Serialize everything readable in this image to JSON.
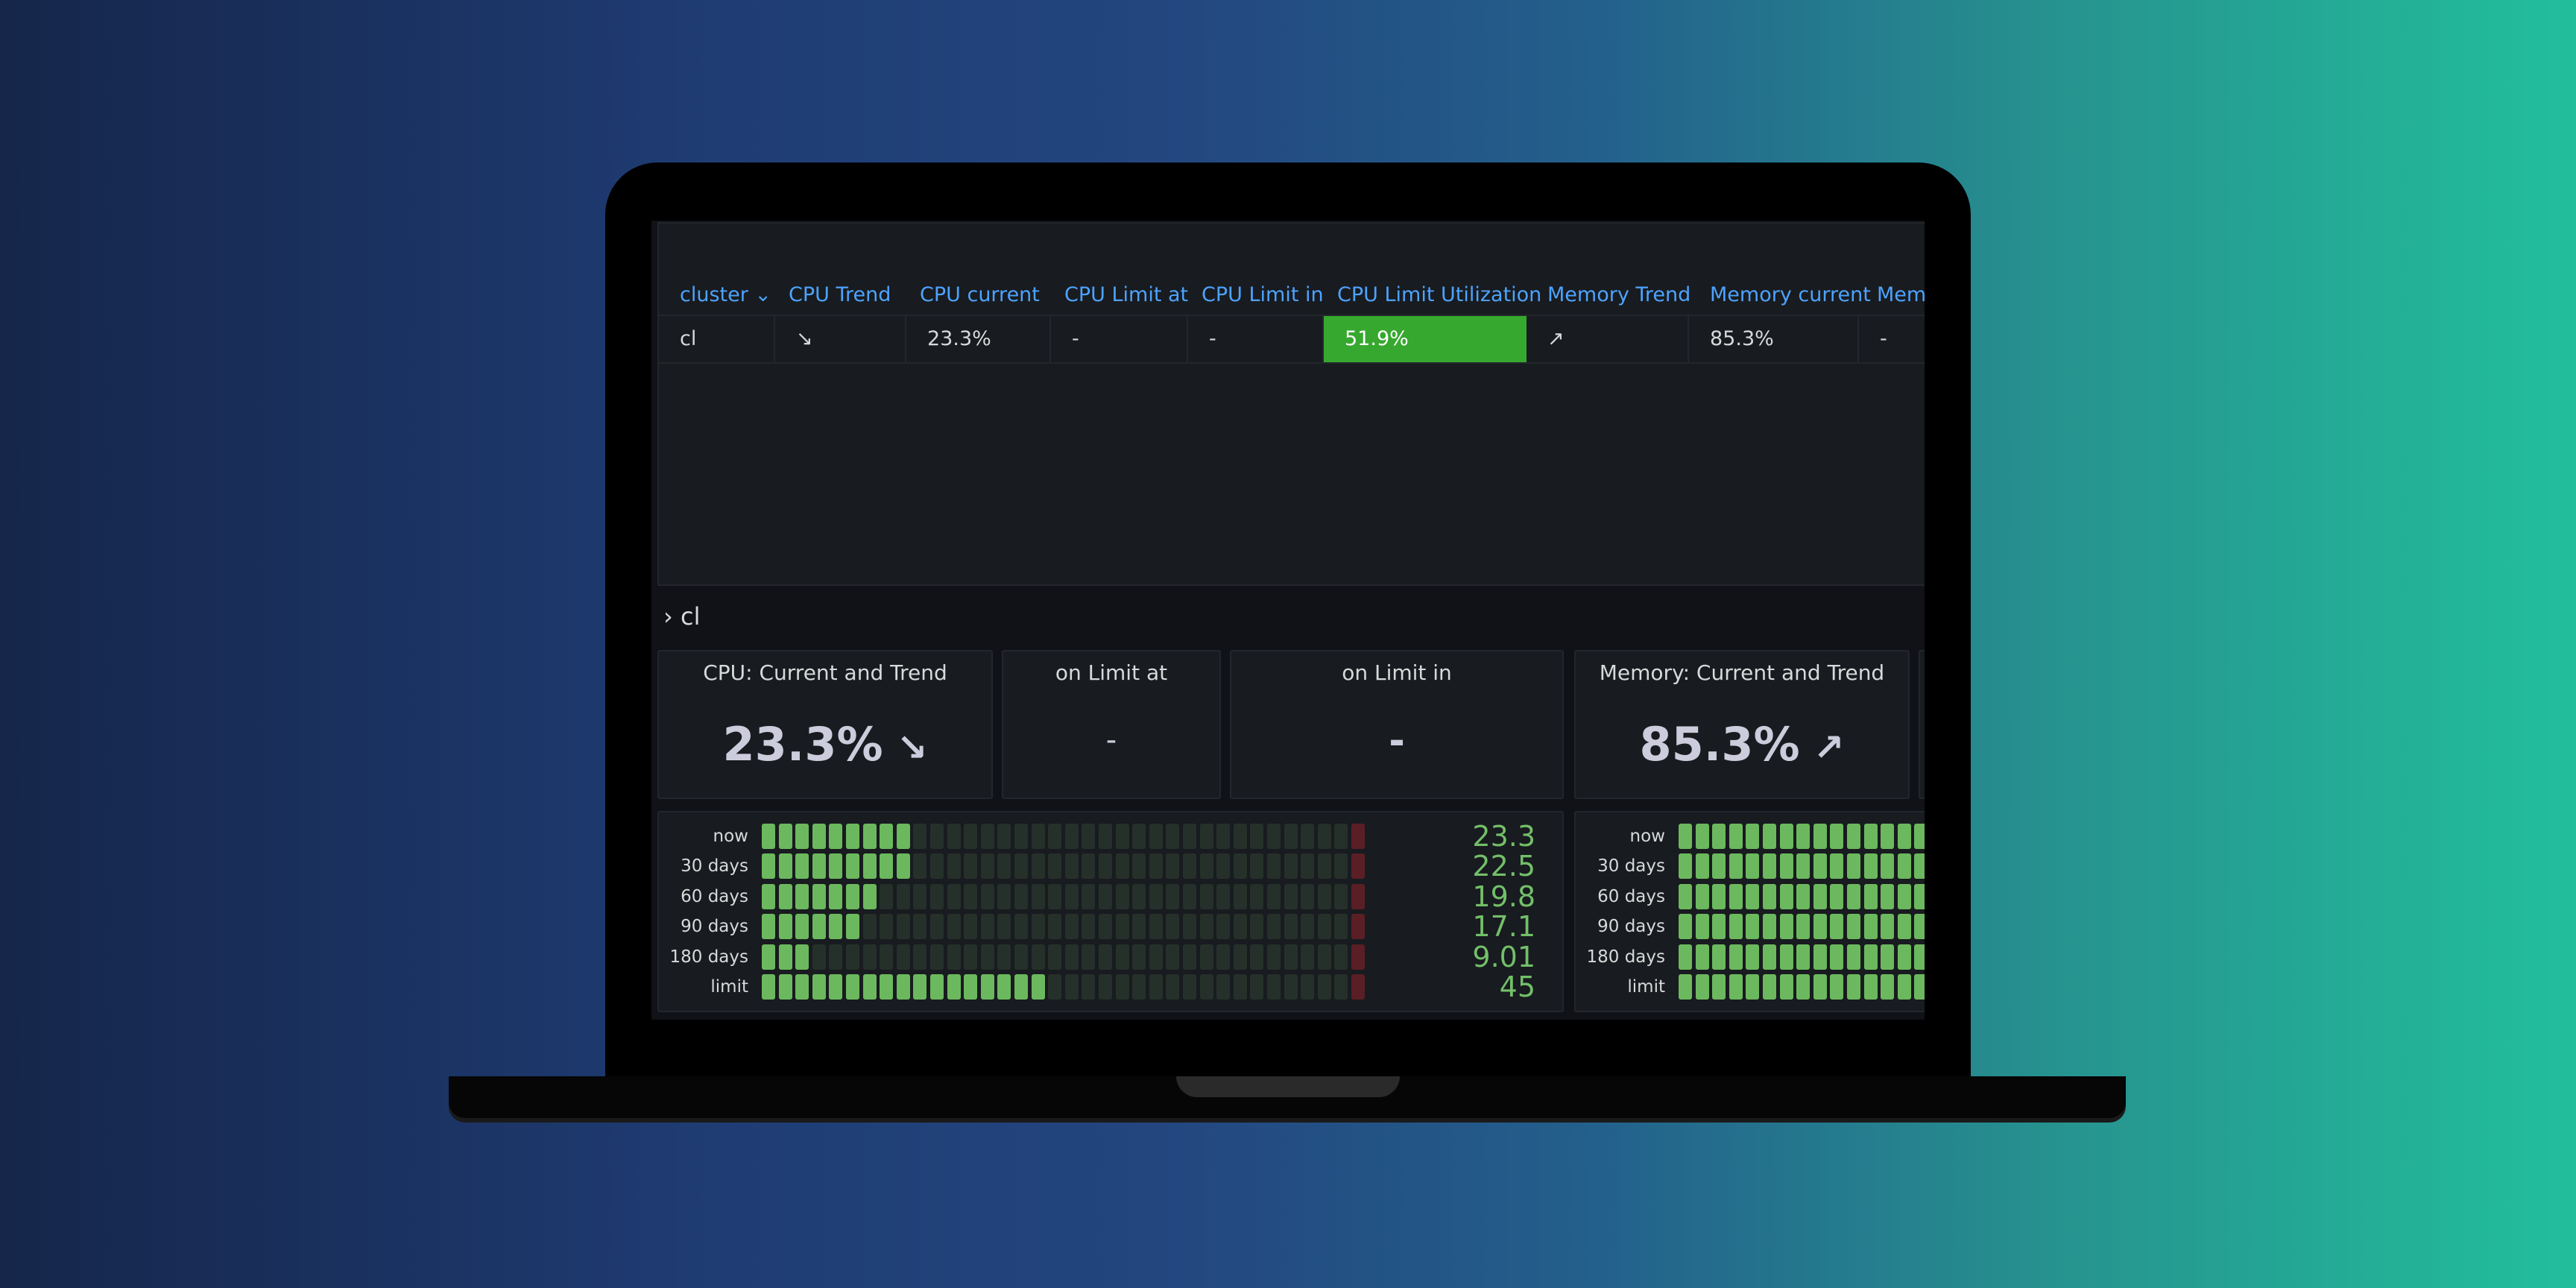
{
  "table": {
    "columns": [
      {
        "label": "cluster ⌄"
      },
      {
        "label": "CPU Trend"
      },
      {
        "label": "CPU current"
      },
      {
        "label": "CPU Limit at"
      },
      {
        "label": "CPU Limit in"
      },
      {
        "label": "CPU Limit Utilization"
      },
      {
        "label": "Memory Trend"
      },
      {
        "label": "Memory current"
      },
      {
        "label": "Mem"
      }
    ],
    "row": [
      "cl",
      "↘",
      "23.3%",
      "-",
      "-",
      "51.9%",
      "↗",
      "85.3%",
      "-"
    ]
  },
  "row_header": "› cl",
  "stats": [
    {
      "title": "CPU: Current and Trend",
      "value": "23.3%",
      "arrow": "↘"
    },
    {
      "title": "on Limit at",
      "value": "-",
      "arrow": ""
    },
    {
      "title": "on Limit in",
      "value": "-",
      "arrow": ""
    },
    {
      "title": "Memory: Current and Trend",
      "value": "85.3%",
      "arrow": "↗"
    }
  ],
  "cpu_gauge": {
    "max": 45,
    "rows": [
      {
        "label": "now",
        "value": 23.3,
        "display": "23.3"
      },
      {
        "label": "30 days",
        "value": 22.5,
        "display": "22.5"
      },
      {
        "label": "60 days",
        "value": 19.8,
        "display": "19.8"
      },
      {
        "label": "90 days",
        "value": 17.1,
        "display": "17.1"
      },
      {
        "label": "180 days",
        "value": 9.01,
        "display": "9.01"
      },
      {
        "label": "limit",
        "value": 45,
        "display": "45"
      }
    ]
  },
  "mem_gauge": {
    "rows": [
      {
        "label": "now"
      },
      {
        "label": "30 days"
      },
      {
        "label": "60 days"
      },
      {
        "label": "90 days"
      },
      {
        "label": "180 days"
      },
      {
        "label": "limit"
      }
    ]
  },
  "colors": {
    "accent_blue": "#4da3ff",
    "cell_green": "#37a82f",
    "gauge_on": "#6cb85e",
    "gauge_off": "#26302a",
    "gauge_end": "#5a1f25",
    "value_green": "#73bf69"
  }
}
